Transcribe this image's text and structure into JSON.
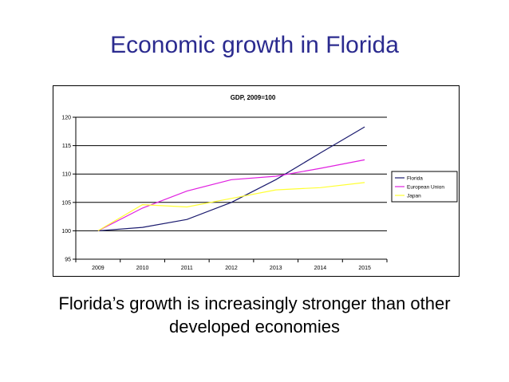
{
  "slide": {
    "title": "Economic growth in Florida",
    "caption_line1": "Florida’s growth is increasingly stronger than other",
    "caption_line2": "developed economies"
  },
  "chart_data": {
    "type": "line",
    "title": "GDP, 2009=100",
    "x": [
      "2009",
      "2010",
      "2011",
      "2012",
      "2013",
      "2014",
      "2015"
    ],
    "ylim": [
      95,
      120
    ],
    "yticks": [
      95,
      100,
      105,
      110,
      115,
      120
    ],
    "grid": true,
    "legend_position": "right",
    "series": [
      {
        "name": "Florida",
        "color": "#1a1a6e",
        "values": [
          100,
          100.6,
          102,
          105,
          109,
          113.7,
          118.3
        ]
      },
      {
        "name": "European Union",
        "color": "#e020e0",
        "values": [
          100,
          104,
          107,
          109,
          109.6,
          111,
          112.5
        ]
      },
      {
        "name": "Japan",
        "color": "#ffff33",
        "values": [
          100,
          104.6,
          104.2,
          105.7,
          107.2,
          107.6,
          108.5
        ]
      }
    ]
  }
}
